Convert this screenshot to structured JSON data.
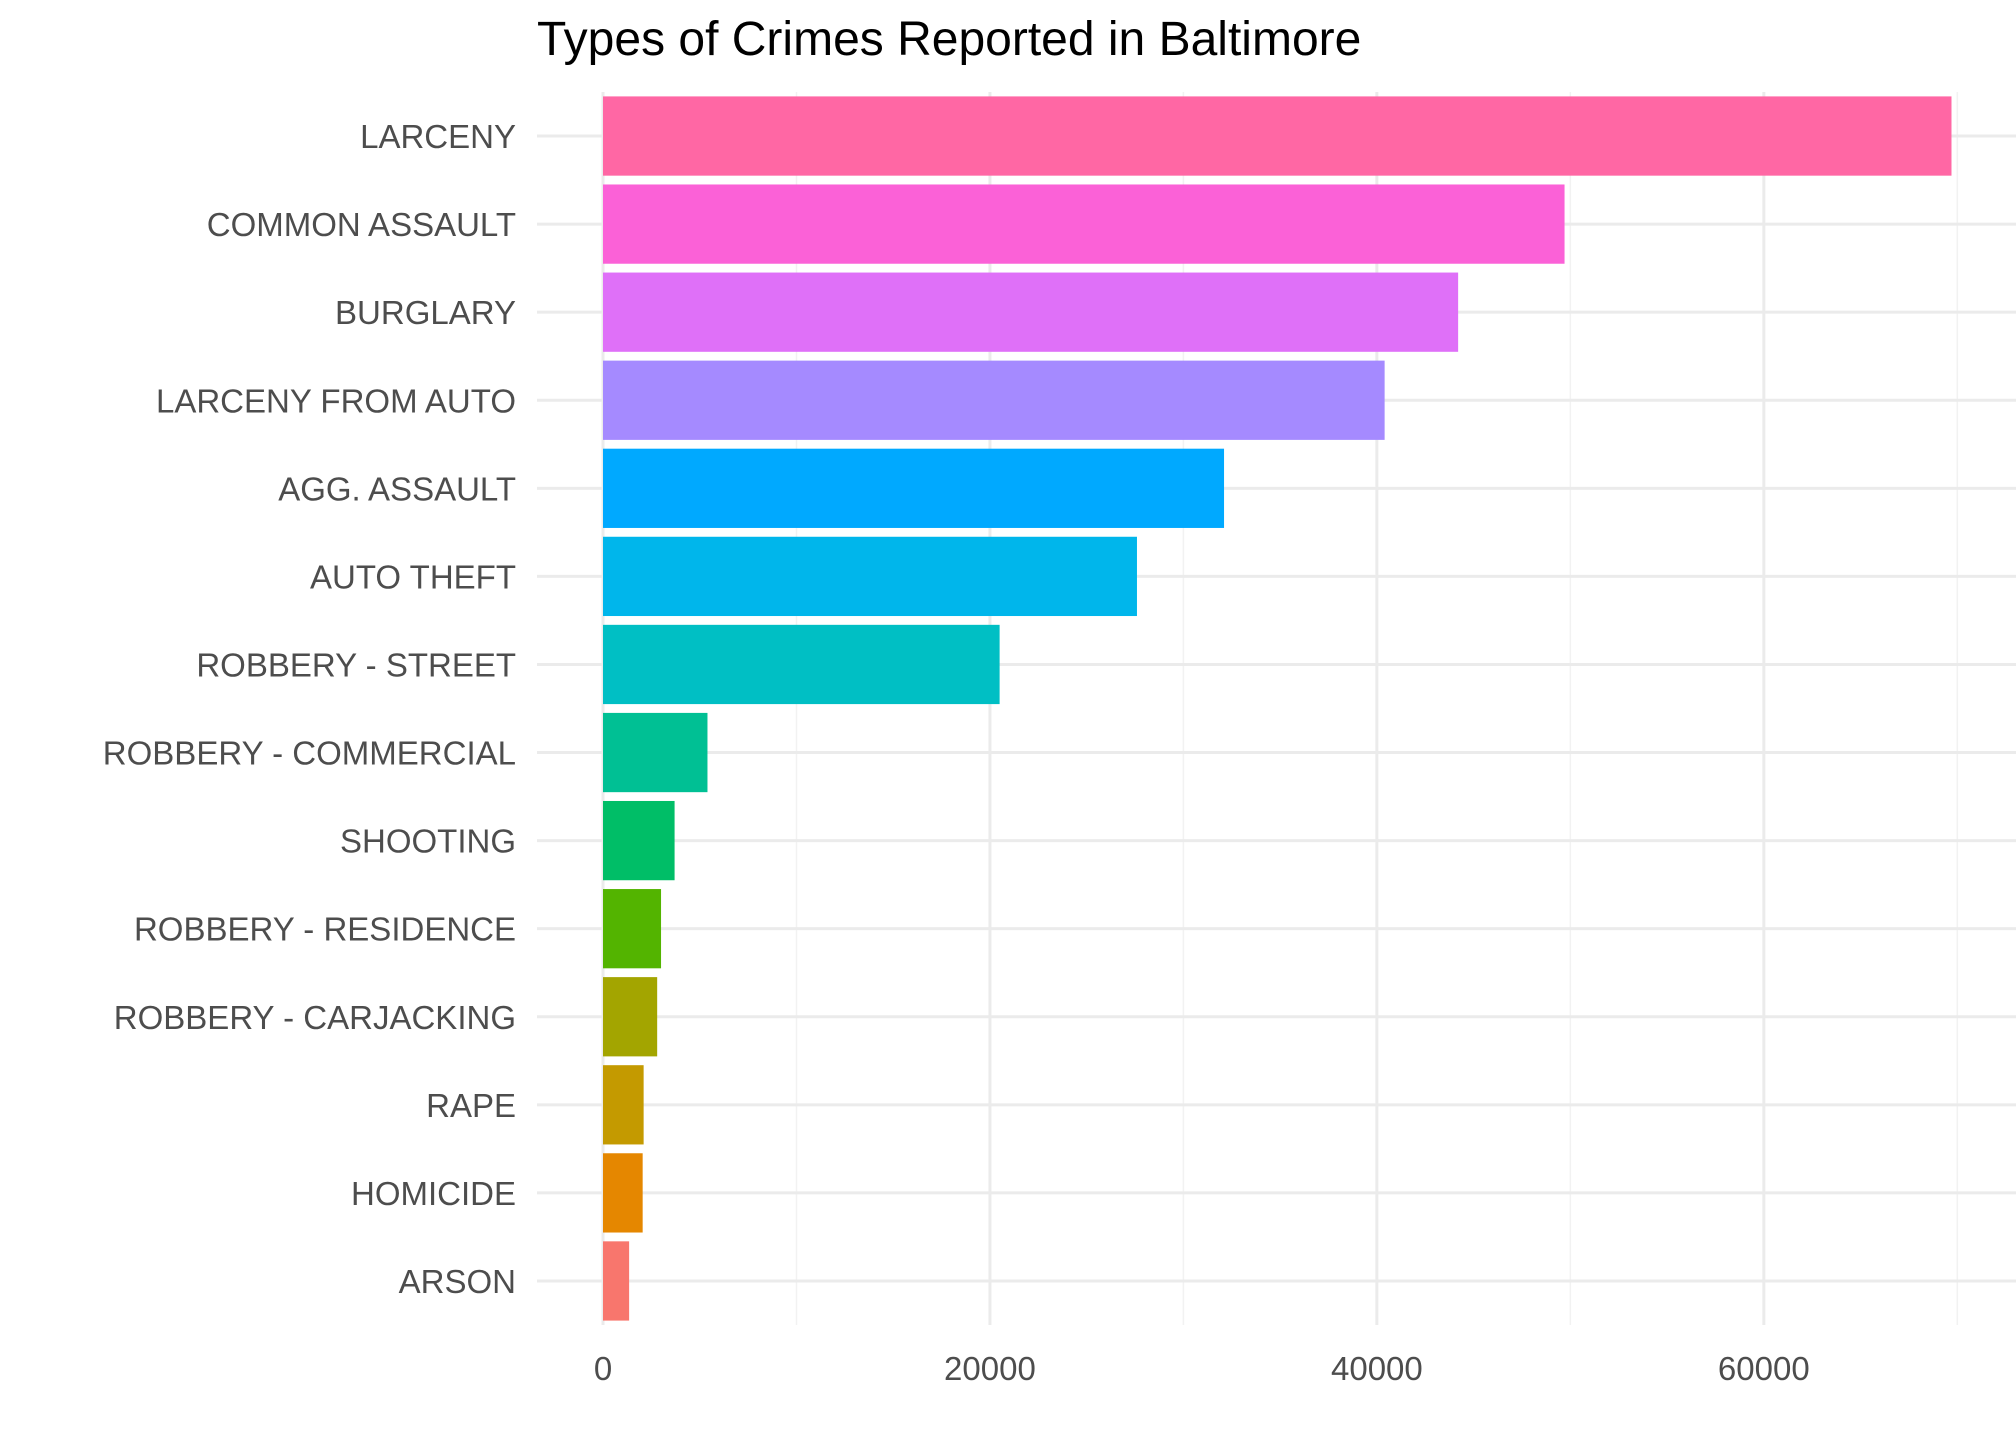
{
  "chart_data": {
    "type": "bar",
    "orientation": "horizontal",
    "title": "Types of Crimes Reported in Baltimore",
    "xlabel": "",
    "ylabel": "",
    "xlim": [
      0,
      72500
    ],
    "x_ticks": [
      0,
      20000,
      40000,
      60000
    ],
    "x_tick_labels": [
      "0",
      "20000",
      "40000",
      "60000"
    ],
    "grid": true,
    "legend": "none",
    "categories": [
      "LARCENY",
      "COMMON ASSAULT",
      "BURGLARY",
      "LARCENY FROM AUTO",
      "AGG. ASSAULT",
      "AUTO THEFT",
      "ROBBERY - STREET",
      "ROBBERY - COMMERCIAL",
      "SHOOTING",
      "ROBBERY - RESIDENCE",
      "ROBBERY - CARJACKING",
      "RAPE",
      "HOMICIDE",
      "ARSON"
    ],
    "values": [
      69700,
      49700,
      44200,
      40400,
      32100,
      27600,
      20500,
      5400,
      3700,
      3000,
      2800,
      2100,
      2050,
      1350
    ],
    "colors": [
      "#FF67A4",
      "#FB61D7",
      "#DF70F8",
      "#A58AFF",
      "#00A9FF",
      "#00B6EB",
      "#00BFC4",
      "#00C094",
      "#00BE67",
      "#53B400",
      "#A3A500",
      "#C49A00",
      "#E58700",
      "#F8766D"
    ]
  }
}
